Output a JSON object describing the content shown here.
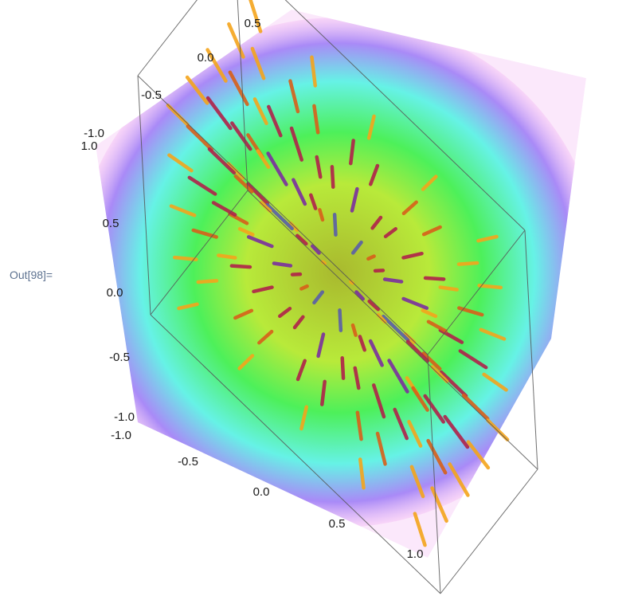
{
  "cell": {
    "out_label": "Out[98]="
  },
  "chart_data": {
    "type": "3d-vector-density",
    "description_in_picture": "",
    "density": {
      "function": "radial",
      "color_stops": [
        {
          "r": 0.0,
          "color": "#a9b92e"
        },
        {
          "r": 0.35,
          "color": "#b8ea3a"
        },
        {
          "r": 0.55,
          "color": "#4df05a"
        },
        {
          "r": 0.75,
          "color": "#66f2e6"
        },
        {
          "r": 0.9,
          "color": "#a98af7"
        },
        {
          "r": 1.0,
          "color": "#f6c8f6"
        }
      ]
    },
    "vectors": {
      "direction": "radial-outward",
      "grid": "regular 3D grid",
      "color_scheme": [
        "#3a7f8e",
        "#5a5fa8",
        "#7b2fa0",
        "#b0224a",
        "#d8601a",
        "#f4a51c"
      ]
    },
    "axes": {
      "x": {
        "range": [
          -1.0,
          1.0
        ],
        "ticks": [
          "-1.0",
          "-0.5",
          "0.0",
          "0.5",
          "1.0"
        ]
      },
      "y": {
        "range": [
          -1.0,
          1.0
        ],
        "ticks": [
          "-1.0",
          "-0.5",
          "0.0",
          "0.5",
          "1.0"
        ]
      },
      "z": {
        "range": [
          -1.0,
          1.0
        ],
        "ticks": [
          "-1.0",
          "-0.5",
          "0.0",
          "0.5",
          "1.0"
        ]
      }
    },
    "box": true
  }
}
